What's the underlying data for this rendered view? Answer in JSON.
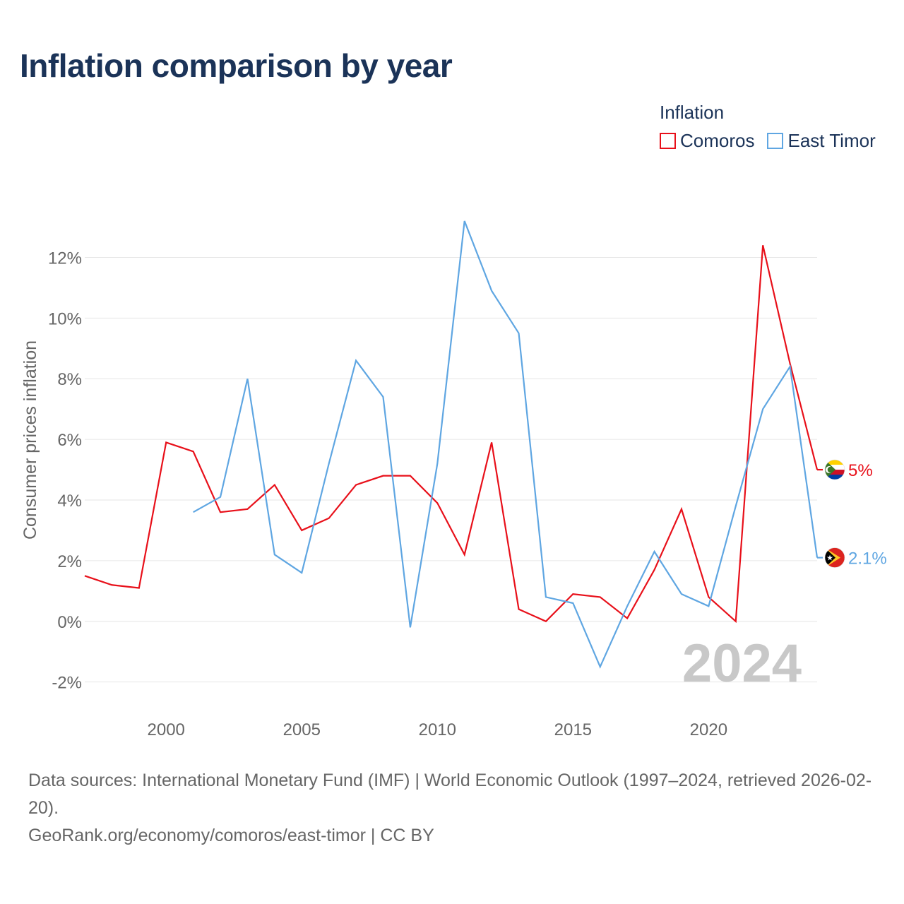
{
  "title": "Inflation comparison by year",
  "legend": {
    "title": "Inflation",
    "items": [
      {
        "label": "Comoros",
        "color": "#e8101a"
      },
      {
        "label": "East Timor",
        "color": "#5fa6e2"
      }
    ]
  },
  "watermark_year": "2024",
  "source": {
    "line1": "Data sources: International Monetary Fund (IMF) | World Economic Outlook (1997–2024, retrieved 2026-02-20).",
    "line2": "GeoRank.org/economy/comoros/east-timor | CC BY"
  },
  "chart_data": {
    "type": "line",
    "title": "Inflation comparison by year",
    "xlabel": "",
    "ylabel": "Consumer prices inflation",
    "xlim": [
      1997,
      2024
    ],
    "ylim": [
      -2.8,
      14.2
    ],
    "x_ticks": [
      2000,
      2005,
      2010,
      2015,
      2020
    ],
    "y_ticks": [
      -2,
      0,
      2,
      4,
      6,
      8,
      10,
      12
    ],
    "y_tick_labels": [
      "-2%",
      "0%",
      "2%",
      "4%",
      "6%",
      "8%",
      "10%",
      "12%"
    ],
    "grid": true,
    "series": [
      {
        "name": "Comoros",
        "color": "#e8101a",
        "end_label": "5%",
        "x": [
          1997,
          1998,
          1999,
          2000,
          2001,
          2002,
          2003,
          2004,
          2005,
          2006,
          2007,
          2008,
          2009,
          2010,
          2011,
          2012,
          2013,
          2014,
          2015,
          2016,
          2017,
          2018,
          2019,
          2020,
          2021,
          2022,
          2023,
          2024
        ],
        "values": [
          1.5,
          1.2,
          1.1,
          5.9,
          5.6,
          3.6,
          3.7,
          4.5,
          3.0,
          3.4,
          4.5,
          4.8,
          4.8,
          3.9,
          2.2,
          5.9,
          0.4,
          0.0,
          0.9,
          0.8,
          0.1,
          1.7,
          3.7,
          0.8,
          0.0,
          12.4,
          8.5,
          5.0
        ]
      },
      {
        "name": "East Timor",
        "color": "#5fa6e2",
        "end_label": "2.1%",
        "x": [
          2001,
          2002,
          2003,
          2004,
          2005,
          2006,
          2007,
          2008,
          2009,
          2010,
          2011,
          2012,
          2013,
          2014,
          2015,
          2016,
          2017,
          2018,
          2019,
          2020,
          2021,
          2022,
          2023,
          2024
        ],
        "values": [
          3.6,
          4.1,
          8.0,
          2.2,
          1.6,
          5.2,
          8.6,
          7.4,
          -0.2,
          5.2,
          13.2,
          10.9,
          9.5,
          0.8,
          0.6,
          -1.5,
          0.5,
          2.3,
          0.9,
          0.5,
          3.8,
          7.0,
          8.4,
          2.1
        ]
      }
    ]
  }
}
